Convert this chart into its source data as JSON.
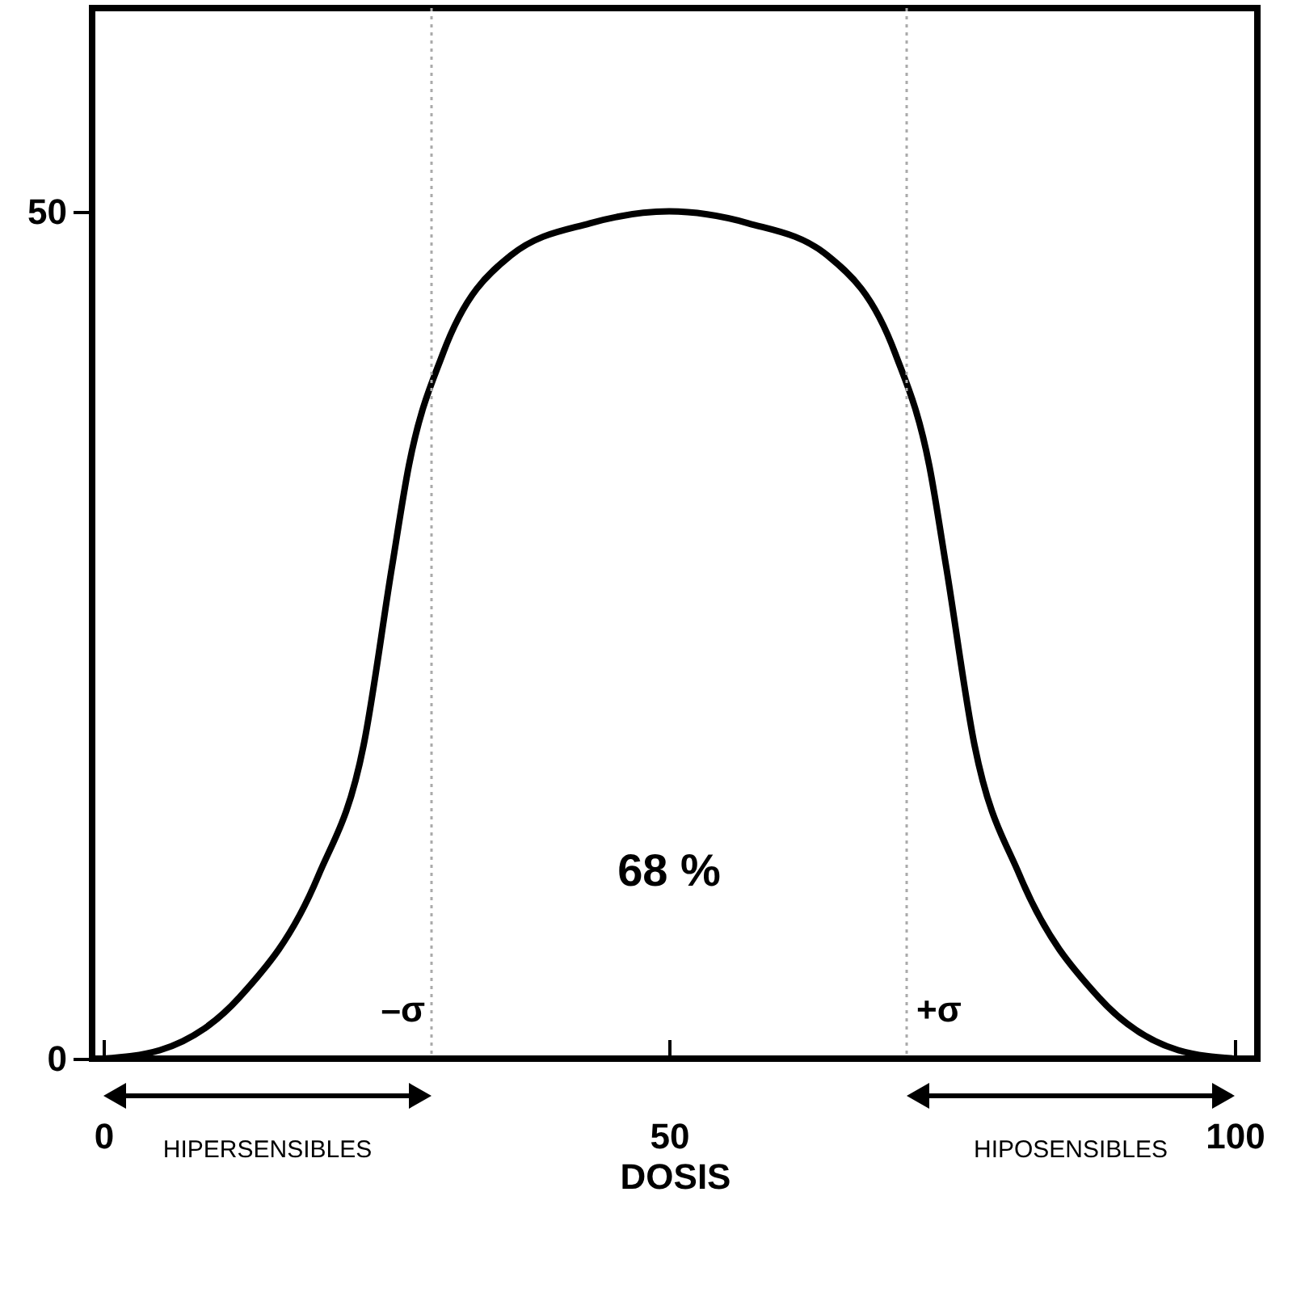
{
  "chart_data": {
    "type": "line",
    "xlabel": "DOSIS",
    "x": [
      0,
      5,
      12,
      19,
      23,
      25.5,
      27,
      30,
      36,
      43,
      50,
      57,
      64,
      70,
      73,
      74.5,
      77,
      81,
      88,
      95,
      100
    ],
    "series": [
      {
        "color": "#000000",
        "values": [
          0,
          0.5,
          3.6,
          10.8,
          18.5,
          29,
          35,
          41.6,
          47.4,
          49.3,
          50,
          49.3,
          47.4,
          41.6,
          35,
          29,
          18.5,
          10.8,
          3.6,
          0.5,
          0
        ]
      }
    ],
    "xlim": [
      -1,
      102
    ],
    "ylim": [
      0,
      62
    ],
    "xticks": [
      0,
      50,
      100
    ],
    "yticks": [
      0,
      50
    ],
    "ref_lines": [
      {
        "axis": "x",
        "value": 29,
        "label": "–σ",
        "color": "#aaaaaa",
        "line_style": "dotted"
      },
      {
        "axis": "x",
        "value": 71,
        "label": "+σ",
        "color": "#aaaaaa",
        "line_style": "dotted"
      }
    ],
    "annotations": [
      "68 %",
      "HIPERSENSIBLES",
      "HIPOSENSIBLES"
    ],
    "grid": false,
    "marker": "none",
    "line_style": "solid"
  }
}
